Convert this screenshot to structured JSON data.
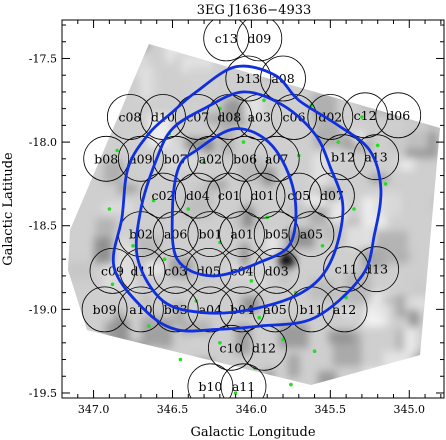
{
  "chart_data": {
    "type": "scatter",
    "title": "3EG J1636−4933",
    "xlabel": "Galactic Longitude",
    "ylabel": "Galactic Latitude",
    "xlim": [
      347.2,
      344.78
    ],
    "ylim": [
      -19.53,
      -17.27
    ],
    "x_ticks": [
      "347.0",
      "346.5",
      "346.0",
      "345.5",
      "345.0"
    ],
    "x_tick_values": [
      347.0,
      346.5,
      346.0,
      345.5,
      345.0
    ],
    "y_ticks": [
      "-17.5",
      "-18.0",
      "-18.5",
      "-19.0",
      "-19.5"
    ],
    "y_tick_values": [
      -17.5,
      -18.0,
      -18.5,
      -19.0,
      -19.5
    ],
    "fields": [
      {
        "name": "c13",
        "l": 346.16,
        "b": -17.38
      },
      {
        "name": "d09",
        "l": 345.95,
        "b": -17.38
      },
      {
        "name": "b13",
        "l": 346.02,
        "b": -17.62
      },
      {
        "name": "a08",
        "l": 345.8,
        "b": -17.62
      },
      {
        "name": "c08",
        "l": 346.77,
        "b": -17.85
      },
      {
        "name": "d10",
        "l": 346.56,
        "b": -17.85
      },
      {
        "name": "c07",
        "l": 346.34,
        "b": -17.85
      },
      {
        "name": "d08",
        "l": 346.14,
        "b": -17.85
      },
      {
        "name": "a03",
        "l": 345.95,
        "b": -17.85
      },
      {
        "name": "c06",
        "l": 345.73,
        "b": -17.85
      },
      {
        "name": "d02",
        "l": 345.5,
        "b": -17.85
      },
      {
        "name": "c12",
        "l": 345.28,
        "b": -17.84
      },
      {
        "name": "d06",
        "l": 345.07,
        "b": -17.84
      },
      {
        "name": "b08",
        "l": 346.92,
        "b": -18.1
      },
      {
        "name": "a09",
        "l": 346.7,
        "b": -18.1
      },
      {
        "name": "b07",
        "l": 346.48,
        "b": -18.1
      },
      {
        "name": "a02",
        "l": 346.26,
        "b": -18.1
      },
      {
        "name": "b06",
        "l": 346.04,
        "b": -18.1
      },
      {
        "name": "a07",
        "l": 345.84,
        "b": -18.1
      },
      {
        "name": "b12",
        "l": 345.42,
        "b": -18.09
      },
      {
        "name": "a13",
        "l": 345.21,
        "b": -18.09
      },
      {
        "name": "c02",
        "l": 346.56,
        "b": -18.32
      },
      {
        "name": "d04",
        "l": 346.34,
        "b": -18.32
      },
      {
        "name": "c01",
        "l": 346.14,
        "b": -18.32
      },
      {
        "name": "d01",
        "l": 345.93,
        "b": -18.32
      },
      {
        "name": "c05",
        "l": 345.7,
        "b": -18.32
      },
      {
        "name": "d07",
        "l": 345.49,
        "b": -18.32
      },
      {
        "name": "b02",
        "l": 346.7,
        "b": -18.55
      },
      {
        "name": "a06",
        "l": 346.48,
        "b": -18.55
      },
      {
        "name": "b01",
        "l": 346.26,
        "b": -18.55
      },
      {
        "name": "a01",
        "l": 346.06,
        "b": -18.55
      },
      {
        "name": "b05",
        "l": 345.84,
        "b": -18.55
      },
      {
        "name": "a05",
        "l": 345.62,
        "b": -18.55
      },
      {
        "name": "c09",
        "l": 346.88,
        "b": -18.77
      },
      {
        "name": "d11",
        "l": 346.69,
        "b": -18.77
      },
      {
        "name": "c03",
        "l": 346.48,
        "b": -18.77
      },
      {
        "name": "d05",
        "l": 346.27,
        "b": -18.77
      },
      {
        "name": "c04",
        "l": 346.06,
        "b": -18.77
      },
      {
        "name": "d03",
        "l": 345.84,
        "b": -18.77
      },
      {
        "name": "c11",
        "l": 345.4,
        "b": -18.76
      },
      {
        "name": "d13",
        "l": 345.21,
        "b": -18.76
      },
      {
        "name": "b09",
        "l": 346.93,
        "b": -19.0
      },
      {
        "name": "a10",
        "l": 346.7,
        "b": -19.0
      },
      {
        "name": "b03",
        "l": 346.48,
        "b": -19.0
      },
      {
        "name": "a04",
        "l": 346.26,
        "b": -19.0
      },
      {
        "name": "b04",
        "l": 346.06,
        "b": -19.0
      },
      {
        "name": "a05",
        "l": 345.85,
        "b": -19.0
      },
      {
        "name": "b11",
        "l": 345.62,
        "b": -19.0
      },
      {
        "name": "a12",
        "l": 345.41,
        "b": -19.0
      },
      {
        "name": "c10",
        "l": 346.13,
        "b": -19.23
      },
      {
        "name": "d12",
        "l": 345.92,
        "b": -19.23
      },
      {
        "name": "b10",
        "l": 346.26,
        "b": -19.46
      },
      {
        "name": "a11",
        "l": 346.05,
        "b": -19.46
      }
    ],
    "contours": [
      {
        "level": "inner",
        "points": [
          [
            346.35,
            -18.05
          ],
          [
            346.1,
            -17.92
          ],
          [
            345.87,
            -18.02
          ],
          [
            345.73,
            -18.3
          ],
          [
            345.75,
            -18.6
          ],
          [
            345.95,
            -18.72
          ],
          [
            346.25,
            -18.8
          ],
          [
            346.47,
            -18.7
          ],
          [
            346.5,
            -18.4
          ],
          [
            346.46,
            -18.15
          ]
        ]
      },
      {
        "level": "middle",
        "points": [
          [
            346.3,
            -17.8
          ],
          [
            346.05,
            -17.7
          ],
          [
            345.8,
            -17.78
          ],
          [
            345.6,
            -17.95
          ],
          [
            345.5,
            -18.15
          ],
          [
            345.42,
            -18.4
          ],
          [
            345.5,
            -18.72
          ],
          [
            345.68,
            -18.9
          ],
          [
            346.0,
            -19.0
          ],
          [
            346.3,
            -19.02
          ],
          [
            346.56,
            -18.95
          ],
          [
            346.72,
            -18.7
          ],
          [
            346.7,
            -18.4
          ],
          [
            346.6,
            -18.1
          ],
          [
            346.5,
            -17.92
          ]
        ]
      },
      {
        "level": "outer",
        "points": [
          [
            346.35,
            -17.7
          ],
          [
            346.1,
            -17.55
          ],
          [
            345.85,
            -17.6
          ],
          [
            345.7,
            -17.75
          ],
          [
            345.45,
            -17.9
          ],
          [
            345.25,
            -18.05
          ],
          [
            345.18,
            -18.28
          ],
          [
            345.22,
            -18.55
          ],
          [
            345.3,
            -18.8
          ],
          [
            345.6,
            -19.05
          ],
          [
            345.95,
            -19.1
          ],
          [
            346.22,
            -19.12
          ],
          [
            346.48,
            -19.12
          ],
          [
            346.68,
            -19.0
          ],
          [
            346.87,
            -18.75
          ],
          [
            346.82,
            -18.45
          ],
          [
            346.78,
            -18.15
          ],
          [
            346.65,
            -17.95
          ],
          [
            346.5,
            -17.82
          ]
        ]
      }
    ],
    "source_markers": [
      [
        346.2,
        -17.8
      ],
      [
        345.92,
        -17.75
      ],
      [
        345.62,
        -17.78
      ],
      [
        345.3,
        -17.85
      ],
      [
        346.52,
        -17.95
      ],
      [
        345.45,
        -18.0
      ],
      [
        345.2,
        -18.02
      ],
      [
        346.85,
        -18.05
      ],
      [
        346.05,
        -18.0
      ],
      [
        345.7,
        -18.08
      ],
      [
        346.3,
        -18.12
      ],
      [
        345.15,
        -18.25
      ],
      [
        346.62,
        -18.35
      ],
      [
        346.4,
        -18.4
      ],
      [
        345.35,
        -18.4
      ],
      [
        346.9,
        -18.4
      ],
      [
        345.9,
        -18.45
      ],
      [
        346.2,
        -18.6
      ],
      [
        345.55,
        -18.62
      ],
      [
        346.75,
        -18.62
      ],
      [
        346.55,
        -18.7
      ],
      [
        346.0,
        -18.83
      ],
      [
        345.72,
        -18.9
      ],
      [
        346.88,
        -18.85
      ],
      [
        346.35,
        -18.95
      ],
      [
        345.4,
        -18.93
      ],
      [
        345.95,
        -19.05
      ],
      [
        346.65,
        -19.1
      ],
      [
        345.8,
        -19.18
      ],
      [
        346.2,
        -19.2
      ],
      [
        345.6,
        -19.25
      ],
      [
        346.45,
        -19.3
      ],
      [
        345.98,
        -19.35
      ],
      [
        345.75,
        -19.45
      ],
      [
        346.1,
        -19.5
      ]
    ]
  },
  "style": {
    "contour_color": "#1030e0",
    "marker_color": "#22dd22",
    "circle_stroke": "#000000",
    "sky_base": "#cfcfcf"
  }
}
